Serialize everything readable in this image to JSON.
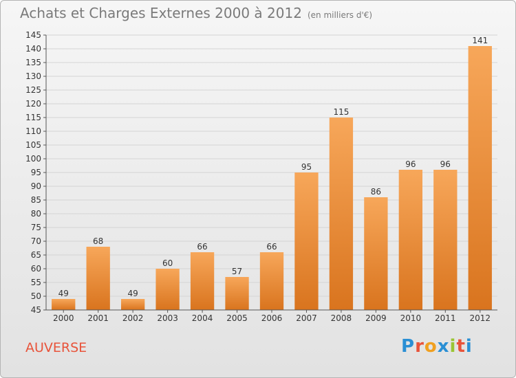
{
  "chart_data": {
    "type": "bar",
    "title": "Achats et Charges Externes 2000 à 2012",
    "subtitle": "(en milliers d'€)",
    "categories": [
      "2000",
      "2001",
      "2002",
      "2003",
      "2004",
      "2005",
      "2006",
      "2007",
      "2008",
      "2009",
      "2010",
      "2011",
      "2012"
    ],
    "values": [
      49,
      68,
      49,
      60,
      66,
      57,
      66,
      95,
      115,
      86,
      96,
      96,
      141
    ],
    "ylim": [
      45,
      145
    ],
    "ytick_step": 5,
    "grid": true,
    "bar_color_top": "#f7a75a",
    "bar_color_bottom": "#d9741e"
  },
  "location": "AUVERSE",
  "logo": {
    "letters": [
      "P",
      "r",
      "o",
      "x",
      "i",
      "t",
      "i"
    ],
    "colors": [
      "#2a8fd4",
      "#e8533a",
      "#f0a020",
      "#2a8fd4",
      "#9ac534",
      "#e8533a",
      "#2a8fd4"
    ]
  }
}
